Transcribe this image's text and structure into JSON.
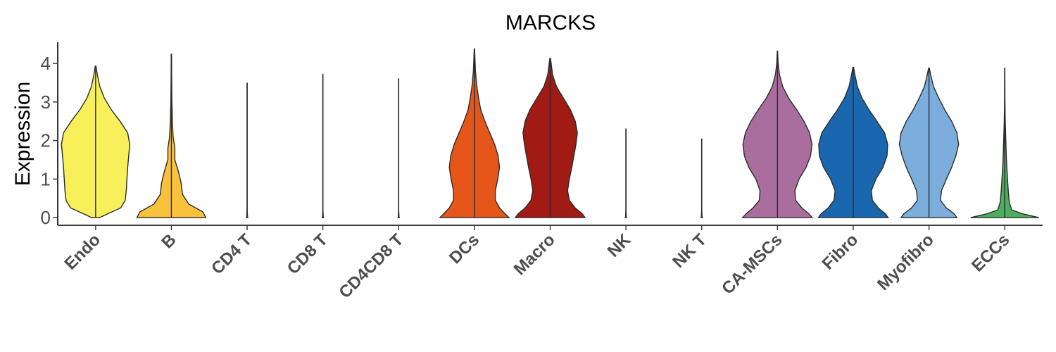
{
  "chart_data": {
    "type": "violin",
    "title": "MARCKS",
    "xlabel": "",
    "ylabel": "Expression",
    "ylim": [
      -0.2,
      4.55
    ],
    "yticks": [
      0,
      1,
      2,
      3,
      4
    ],
    "grid": false,
    "legend": "none",
    "categories": [
      "Endo",
      "B",
      "CD4 T",
      "CD8 T",
      "CD4CD8 T",
      "DCs",
      "Macro",
      "NK",
      "NK T",
      "CA-MSCs",
      "Fibro",
      "Myofibro",
      "ECCs"
    ],
    "colors": [
      "#F7F05A",
      "#F9C23C",
      "#DCDCDC",
      "#DCDCDC",
      "#DCDCDC",
      "#E6561A",
      "#A11A14",
      "#DCDCDC",
      "#DCDCDC",
      "#A96E9E",
      "#1A67B0",
      "#7BAEDD",
      "#4CAF5F"
    ],
    "max_values": [
      3.93,
      4.24,
      3.49,
      3.72,
      3.6,
      4.38,
      4.13,
      2.3,
      2.04,
      4.32,
      3.9,
      3.88,
      3.88
    ],
    "densities": [
      [
        [
          0,
          0.12
        ],
        [
          0.1,
          0.35
        ],
        [
          0.25,
          0.72
        ],
        [
          0.45,
          0.85
        ],
        [
          0.7,
          0.88
        ],
        [
          1.0,
          0.9
        ],
        [
          1.3,
          0.92
        ],
        [
          1.6,
          0.95
        ],
        [
          1.9,
          0.98
        ],
        [
          2.2,
          0.92
        ],
        [
          2.5,
          0.7
        ],
        [
          2.8,
          0.45
        ],
        [
          3.1,
          0.25
        ],
        [
          3.4,
          0.12
        ],
        [
          3.7,
          0.05
        ],
        [
          3.93,
          0.01
        ]
      ],
      [
        [
          0,
          0.99
        ],
        [
          0.15,
          0.9
        ],
        [
          0.35,
          0.5
        ],
        [
          0.6,
          0.32
        ],
        [
          0.9,
          0.28
        ],
        [
          1.2,
          0.2
        ],
        [
          1.5,
          0.1
        ],
        [
          1.8,
          0.1
        ],
        [
          2.1,
          0.05
        ],
        [
          2.5,
          0.03
        ],
        [
          3.0,
          0.015
        ],
        [
          3.6,
          0.008
        ],
        [
          4.24,
          0.005
        ]
      ],
      [
        [
          0,
          0.02
        ],
        [
          0.03,
          0.01
        ],
        [
          0.2,
          0.002
        ],
        [
          3.49,
          0.002
        ]
      ],
      [
        [
          0,
          0.02
        ],
        [
          0.03,
          0.01
        ],
        [
          0.2,
          0.002
        ],
        [
          3.72,
          0.002
        ]
      ],
      [
        [
          0,
          0.02
        ],
        [
          0.03,
          0.01
        ],
        [
          0.2,
          0.002
        ],
        [
          3.6,
          0.002
        ]
      ],
      [
        [
          0,
          0.99
        ],
        [
          0.1,
          0.88
        ],
        [
          0.25,
          0.72
        ],
        [
          0.45,
          0.6
        ],
        [
          0.7,
          0.6
        ],
        [
          1.0,
          0.67
        ],
        [
          1.3,
          0.72
        ],
        [
          1.6,
          0.68
        ],
        [
          1.9,
          0.58
        ],
        [
          2.2,
          0.44
        ],
        [
          2.5,
          0.3
        ],
        [
          2.8,
          0.18
        ],
        [
          3.1,
          0.12
        ],
        [
          3.4,
          0.07
        ],
        [
          3.8,
          0.03
        ],
        [
          4.38,
          0.005
        ]
      ],
      [
        [
          0,
          1.0
        ],
        [
          0.1,
          0.92
        ],
        [
          0.25,
          0.72
        ],
        [
          0.45,
          0.55
        ],
        [
          0.7,
          0.5
        ],
        [
          1.0,
          0.55
        ],
        [
          1.3,
          0.62
        ],
        [
          1.6,
          0.68
        ],
        [
          1.9,
          0.74
        ],
        [
          2.2,
          0.78
        ],
        [
          2.5,
          0.72
        ],
        [
          2.8,
          0.58
        ],
        [
          3.1,
          0.38
        ],
        [
          3.4,
          0.18
        ],
        [
          3.7,
          0.07
        ],
        [
          4.13,
          0.01
        ]
      ],
      [
        [
          0,
          0.02
        ],
        [
          0.03,
          0.01
        ],
        [
          0.2,
          0.002
        ],
        [
          2.3,
          0.002
        ]
      ],
      [
        [
          0,
          0.02
        ],
        [
          0.03,
          0.01
        ],
        [
          0.2,
          0.002
        ],
        [
          2.04,
          0.002
        ]
      ],
      [
        [
          0,
          1.0
        ],
        [
          0.1,
          0.9
        ],
        [
          0.25,
          0.7
        ],
        [
          0.45,
          0.52
        ],
        [
          0.7,
          0.5
        ],
        [
          1.0,
          0.62
        ],
        [
          1.3,
          0.82
        ],
        [
          1.6,
          0.95
        ],
        [
          1.9,
          0.99
        ],
        [
          2.2,
          0.92
        ],
        [
          2.5,
          0.76
        ],
        [
          2.8,
          0.55
        ],
        [
          3.1,
          0.32
        ],
        [
          3.4,
          0.15
        ],
        [
          3.7,
          0.06
        ],
        [
          4.0,
          0.02
        ],
        [
          4.32,
          0.005
        ]
      ],
      [
        [
          0,
          1.0
        ],
        [
          0.1,
          0.92
        ],
        [
          0.25,
          0.72
        ],
        [
          0.45,
          0.55
        ],
        [
          0.7,
          0.52
        ],
        [
          1.0,
          0.65
        ],
        [
          1.3,
          0.85
        ],
        [
          1.6,
          0.97
        ],
        [
          1.9,
          0.99
        ],
        [
          2.2,
          0.9
        ],
        [
          2.5,
          0.68
        ],
        [
          2.8,
          0.45
        ],
        [
          3.1,
          0.25
        ],
        [
          3.4,
          0.12
        ],
        [
          3.7,
          0.05
        ],
        [
          3.9,
          0.01
        ]
      ],
      [
        [
          0,
          0.8
        ],
        [
          0.1,
          0.72
        ],
        [
          0.25,
          0.5
        ],
        [
          0.45,
          0.33
        ],
        [
          0.7,
          0.36
        ],
        [
          1.0,
          0.5
        ],
        [
          1.3,
          0.65
        ],
        [
          1.6,
          0.77
        ],
        [
          1.9,
          0.85
        ],
        [
          2.2,
          0.8
        ],
        [
          2.5,
          0.65
        ],
        [
          2.8,
          0.45
        ],
        [
          3.1,
          0.28
        ],
        [
          3.4,
          0.13
        ],
        [
          3.7,
          0.05
        ],
        [
          3.88,
          0.01
        ]
      ],
      [
        [
          0,
          0.98
        ],
        [
          0.1,
          0.5
        ],
        [
          0.2,
          0.2
        ],
        [
          0.4,
          0.13
        ],
        [
          0.7,
          0.1
        ],
        [
          1.0,
          0.08
        ],
        [
          1.3,
          0.06
        ],
        [
          1.6,
          0.045
        ],
        [
          2.0,
          0.03
        ],
        [
          2.5,
          0.015
        ],
        [
          3.0,
          0.006
        ],
        [
          3.88,
          0.003
        ]
      ]
    ]
  }
}
